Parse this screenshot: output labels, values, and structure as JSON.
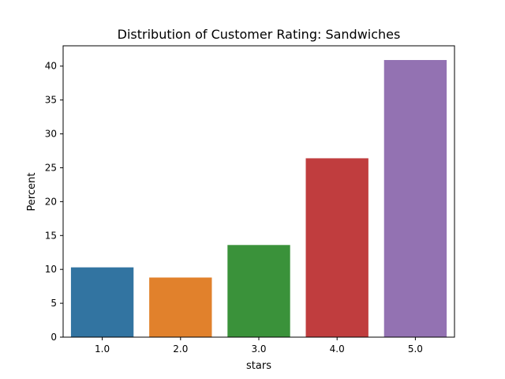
{
  "chart_data": {
    "type": "bar",
    "title": "Distribution of Customer Rating: Sandwiches",
    "xlabel": "stars",
    "ylabel": "Percent",
    "categories": [
      "1.0",
      "2.0",
      "3.0",
      "4.0",
      "5.0"
    ],
    "values": [
      10.3,
      8.8,
      13.6,
      26.4,
      40.9
    ],
    "colors": [
      "#3274a1",
      "#e1812c",
      "#3a923a",
      "#c03d3e",
      "#9372b2"
    ],
    "ylim": [
      0,
      43
    ],
    "yticks": [
      0,
      5,
      10,
      15,
      20,
      25,
      30,
      35,
      40
    ],
    "grid": false,
    "legend": "none"
  }
}
